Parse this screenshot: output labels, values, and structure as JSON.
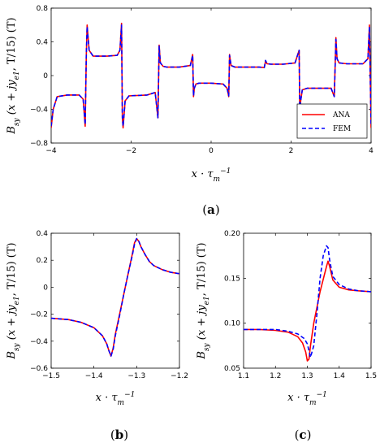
{
  "chart_data": [
    {
      "panel": "(a)",
      "type": "line",
      "xlabel": "x · τ_m^-1",
      "ylabel": "B_sy (x + jy_e1, T/15) (T)",
      "xlim": [
        -4,
        4
      ],
      "ylim": [
        -0.8,
        0.8
      ],
      "xticks": [
        "−4",
        "−2",
        "0",
        "2",
        "4"
      ],
      "yticks": [
        "−0.8",
        "−0.4",
        "0",
        "0.4",
        "0.8"
      ],
      "legend": {
        "position": "bottom-right",
        "entries": [
          "ANA",
          "FEM"
        ]
      },
      "series": [
        {
          "name": "ANA",
          "color": "#ff0000",
          "style": "solid",
          "x": [
            -4.0,
            -3.95,
            -3.85,
            -3.6,
            -3.3,
            -3.2,
            -3.15,
            -3.12,
            -3.1,
            -3.05,
            -2.95,
            -2.6,
            -2.35,
            -2.28,
            -2.24,
            -2.22,
            -2.2,
            -2.15,
            -2.05,
            -1.6,
            -1.4,
            -1.33,
            -1.3,
            -1.27,
            -1.2,
            -1.1,
            -0.8,
            -0.52,
            -0.46,
            -0.44,
            -0.42,
            -0.38,
            -0.3,
            0.0,
            0.3,
            0.4,
            0.44,
            0.46,
            0.5,
            0.6,
            0.9,
            1.2,
            1.33,
            1.36,
            1.4,
            1.5,
            1.8,
            2.1,
            2.2,
            2.22,
            2.24,
            2.28,
            2.4,
            2.7,
            3.0,
            3.08,
            3.12,
            3.15,
            3.2,
            3.4,
            3.8,
            3.92,
            3.96,
            4.0
          ],
          "y": [
            -0.62,
            -0.4,
            -0.25,
            -0.23,
            -0.23,
            -0.28,
            -0.6,
            0.25,
            0.6,
            0.3,
            0.23,
            0.23,
            0.24,
            0.3,
            0.62,
            -0.5,
            -0.62,
            -0.3,
            -0.24,
            -0.23,
            -0.2,
            -0.5,
            0.36,
            0.15,
            0.11,
            0.1,
            0.1,
            0.12,
            0.25,
            -0.25,
            -0.15,
            -0.1,
            -0.09,
            -0.09,
            -0.1,
            -0.15,
            -0.25,
            0.25,
            0.12,
            0.1,
            0.1,
            0.1,
            0.095,
            0.17,
            0.14,
            0.135,
            0.135,
            0.15,
            0.3,
            -0.55,
            -0.3,
            -0.17,
            -0.15,
            -0.15,
            -0.15,
            -0.25,
            0.45,
            0.2,
            0.15,
            0.14,
            0.14,
            0.2,
            0.6,
            -0.62
          ]
        },
        {
          "name": "FEM",
          "color": "#0000ff",
          "style": "dashed",
          "x": [
            -4.0,
            -3.95,
            -3.85,
            -3.6,
            -3.3,
            -3.2,
            -3.15,
            -3.12,
            -3.1,
            -3.05,
            -2.95,
            -2.6,
            -2.35,
            -2.28,
            -2.24,
            -2.22,
            -2.2,
            -2.15,
            -2.05,
            -1.6,
            -1.4,
            -1.33,
            -1.3,
            -1.27,
            -1.2,
            -1.1,
            -0.8,
            -0.52,
            -0.46,
            -0.44,
            -0.42,
            -0.38,
            -0.3,
            0.0,
            0.3,
            0.4,
            0.44,
            0.46,
            0.5,
            0.6,
            0.9,
            1.2,
            1.33,
            1.36,
            1.4,
            1.5,
            1.8,
            2.1,
            2.2,
            2.22,
            2.24,
            2.28,
            2.4,
            2.7,
            3.0,
            3.08,
            3.12,
            3.15,
            3.2,
            3.4,
            3.8,
            3.92,
            3.96,
            4.0
          ],
          "y": [
            -0.6,
            -0.4,
            -0.25,
            -0.23,
            -0.23,
            -0.28,
            -0.58,
            0.25,
            0.58,
            0.3,
            0.23,
            0.23,
            0.24,
            0.3,
            0.6,
            -0.5,
            -0.6,
            -0.3,
            -0.24,
            -0.23,
            -0.2,
            -0.5,
            0.35,
            0.15,
            0.11,
            0.1,
            0.1,
            0.12,
            0.24,
            -0.24,
            -0.15,
            -0.1,
            -0.09,
            -0.09,
            -0.1,
            -0.15,
            -0.24,
            0.24,
            0.12,
            0.1,
            0.1,
            0.1,
            0.095,
            0.18,
            0.14,
            0.135,
            0.135,
            0.15,
            0.3,
            -0.53,
            -0.3,
            -0.17,
            -0.15,
            -0.15,
            -0.15,
            -0.25,
            0.43,
            0.2,
            0.15,
            0.14,
            0.14,
            0.2,
            0.58,
            -0.6
          ]
        }
      ]
    },
    {
      "panel": "(b)",
      "type": "line",
      "xlabel": "x · τ_m^-1",
      "ylabel": "B_sy (x + jy_e1, T/15) (T)",
      "xlim": [
        -1.5,
        -1.2
      ],
      "ylim": [
        -0.6,
        0.4
      ],
      "xticks": [
        "−1.5",
        "−1.4",
        "−1.3",
        "−1.2"
      ],
      "yticks": [
        "−0.6",
        "−0.4",
        "−0.2",
        "0",
        "0.2",
        "0.4"
      ],
      "series": [
        {
          "name": "ANA",
          "color": "#ff0000",
          "style": "solid",
          "x": [
            -1.5,
            -1.46,
            -1.43,
            -1.4,
            -1.38,
            -1.37,
            -1.365,
            -1.36,
            -1.355,
            -1.35,
            -1.34,
            -1.33,
            -1.32,
            -1.31,
            -1.305,
            -1.3,
            -1.295,
            -1.29,
            -1.28,
            -1.27,
            -1.26,
            -1.24,
            -1.22,
            -1.2
          ],
          "y": [
            -0.23,
            -0.24,
            -0.26,
            -0.3,
            -0.36,
            -0.42,
            -0.47,
            -0.51,
            -0.45,
            -0.35,
            -0.2,
            -0.05,
            0.1,
            0.25,
            0.33,
            0.36,
            0.34,
            0.3,
            0.24,
            0.19,
            0.16,
            0.13,
            0.11,
            0.1
          ]
        },
        {
          "name": "FEM",
          "color": "#0000ff",
          "style": "dashed",
          "x": [
            -1.5,
            -1.46,
            -1.43,
            -1.4,
            -1.38,
            -1.37,
            -1.365,
            -1.36,
            -1.355,
            -1.35,
            -1.34,
            -1.33,
            -1.32,
            -1.31,
            -1.305,
            -1.3,
            -1.295,
            -1.29,
            -1.28,
            -1.27,
            -1.26,
            -1.24,
            -1.22,
            -1.2
          ],
          "y": [
            -0.23,
            -0.24,
            -0.26,
            -0.3,
            -0.36,
            -0.42,
            -0.47,
            -0.51,
            -0.46,
            -0.36,
            -0.21,
            -0.05,
            0.1,
            0.24,
            0.32,
            0.36,
            0.34,
            0.3,
            0.24,
            0.19,
            0.16,
            0.13,
            0.11,
            0.1
          ]
        }
      ]
    },
    {
      "panel": "(c)",
      "type": "line",
      "xlabel": "x · τ_m^-1",
      "ylabel": "B_sy (x + jy_e1, T/15) (T)",
      "xlim": [
        1.1,
        1.5
      ],
      "ylim": [
        0.05,
        0.2
      ],
      "xticks": [
        "1.1",
        "1.2",
        "1.3",
        "1.4",
        "1.5"
      ],
      "yticks": [
        "0.05",
        "0.10",
        "0.15",
        "0.20"
      ],
      "series": [
        {
          "name": "ANA",
          "color": "#ff0000",
          "style": "solid",
          "x": [
            1.1,
            1.15,
            1.2,
            1.24,
            1.27,
            1.285,
            1.295,
            1.3,
            1.305,
            1.31,
            1.32,
            1.34,
            1.36,
            1.365,
            1.37,
            1.38,
            1.4,
            1.43,
            1.46,
            1.5
          ],
          "y": [
            0.093,
            0.093,
            0.092,
            0.09,
            0.085,
            0.078,
            0.068,
            0.058,
            0.06,
            0.075,
            0.1,
            0.135,
            0.163,
            0.169,
            0.163,
            0.148,
            0.14,
            0.137,
            0.136,
            0.135
          ]
        },
        {
          "name": "FEM",
          "color": "#0000ff",
          "style": "dashed",
          "x": [
            1.1,
            1.15,
            1.2,
            1.24,
            1.27,
            1.29,
            1.3,
            1.31,
            1.32,
            1.33,
            1.34,
            1.35,
            1.36,
            1.365,
            1.37,
            1.38,
            1.4,
            1.43,
            1.46,
            1.5
          ],
          "y": [
            0.093,
            0.093,
            0.093,
            0.091,
            0.088,
            0.083,
            0.077,
            0.062,
            0.075,
            0.11,
            0.15,
            0.175,
            0.186,
            0.184,
            0.17,
            0.152,
            0.143,
            0.138,
            0.136,
            0.135
          ]
        }
      ]
    }
  ]
}
